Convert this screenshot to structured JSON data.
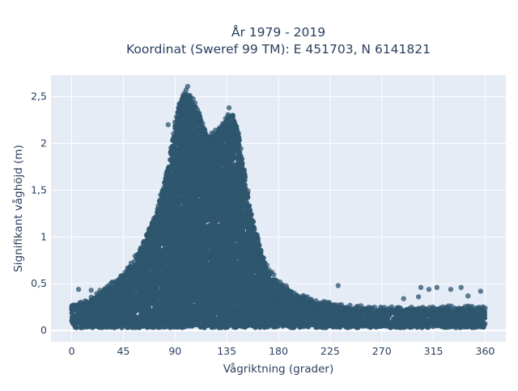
{
  "chart_data": {
    "type": "scatter",
    "title_line1": "År 1979 - 2019",
    "title_line2": "Koordinat (Sweref 99 TM): E 451703, N 6141821",
    "xlabel": "Vågriktning (grader)",
    "ylabel": "Signifikant våghöjd (m)",
    "xlim": [
      -18,
      378
    ],
    "ylim": [
      -0.12,
      2.73
    ],
    "x_ticks": [
      0,
      45,
      90,
      135,
      180,
      225,
      270,
      315,
      360
    ],
    "x_tick_labels": [
      "0",
      "45",
      "90",
      "135",
      "180",
      "225",
      "270",
      "315",
      "360"
    ],
    "y_ticks": [
      0,
      0.5,
      1,
      1.5,
      2,
      2.5
    ],
    "y_tick_labels": [
      "0",
      "0,5",
      "1",
      "1,5",
      "2",
      "2,5"
    ],
    "grid": true,
    "marker_color": "#2e566e",
    "envelope": [
      {
        "x": 0,
        "y": 0.26
      },
      {
        "x": 15,
        "y": 0.3
      },
      {
        "x": 30,
        "y": 0.45
      },
      {
        "x": 45,
        "y": 0.58
      },
      {
        "x": 55,
        "y": 0.75
      },
      {
        "x": 65,
        "y": 1.0
      },
      {
        "x": 75,
        "y": 1.3
      },
      {
        "x": 85,
        "y": 1.8
      },
      {
        "x": 90,
        "y": 2.2
      },
      {
        "x": 95,
        "y": 2.45
      },
      {
        "x": 100,
        "y": 2.55
      },
      {
        "x": 105,
        "y": 2.45
      },
      {
        "x": 110,
        "y": 2.35
      },
      {
        "x": 115,
        "y": 2.15
      },
      {
        "x": 120,
        "y": 2.05
      },
      {
        "x": 125,
        "y": 2.12
      },
      {
        "x": 130,
        "y": 2.18
      },
      {
        "x": 135,
        "y": 2.28
      },
      {
        "x": 140,
        "y": 2.3
      },
      {
        "x": 145,
        "y": 2.12
      },
      {
        "x": 150,
        "y": 1.7
      },
      {
        "x": 155,
        "y": 1.3
      },
      {
        "x": 160,
        "y": 1.05
      },
      {
        "x": 165,
        "y": 0.85
      },
      {
        "x": 170,
        "y": 0.65
      },
      {
        "x": 180,
        "y": 0.5
      },
      {
        "x": 195,
        "y": 0.38
      },
      {
        "x": 210,
        "y": 0.3
      },
      {
        "x": 225,
        "y": 0.27
      },
      {
        "x": 240,
        "y": 0.24
      },
      {
        "x": 270,
        "y": 0.22
      },
      {
        "x": 300,
        "y": 0.22
      },
      {
        "x": 330,
        "y": 0.23
      },
      {
        "x": 360,
        "y": 0.22
      }
    ],
    "outliers": [
      {
        "x": 6,
        "y": 0.44
      },
      {
        "x": 17,
        "y": 0.43
      },
      {
        "x": 232,
        "y": 0.48
      },
      {
        "x": 304,
        "y": 0.46
      },
      {
        "x": 311,
        "y": 0.44
      },
      {
        "x": 318,
        "y": 0.46
      },
      {
        "x": 330,
        "y": 0.44
      },
      {
        "x": 339,
        "y": 0.46
      },
      {
        "x": 356,
        "y": 0.42
      },
      {
        "x": 289,
        "y": 0.34
      },
      {
        "x": 302,
        "y": 0.36
      },
      {
        "x": 345,
        "y": 0.37
      },
      {
        "x": 101,
        "y": 2.61
      },
      {
        "x": 137,
        "y": 2.38
      },
      {
        "x": 84,
        "y": 2.2
      }
    ]
  }
}
